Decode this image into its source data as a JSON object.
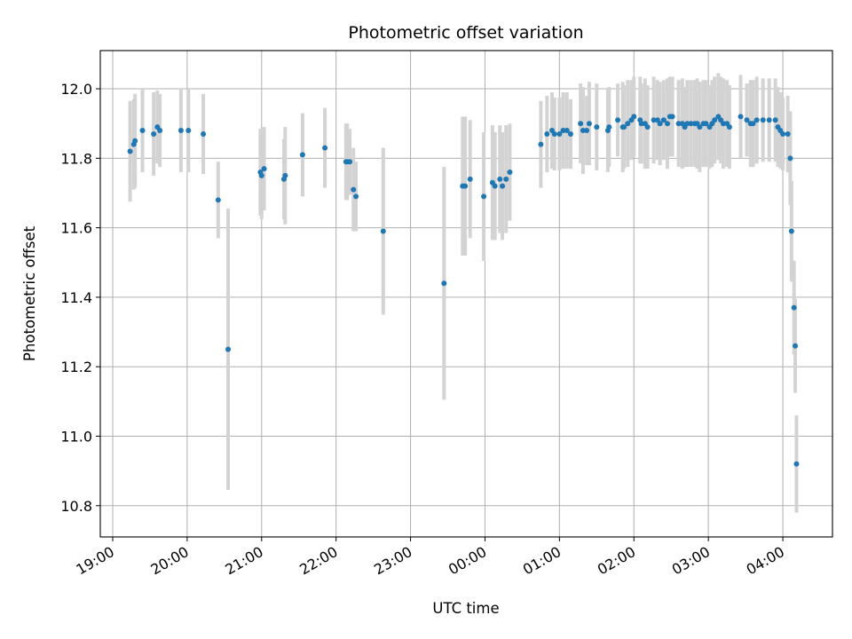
{
  "chart_data": {
    "type": "scatter",
    "title": "Photometric offset variation",
    "xlabel": "UTC time",
    "ylabel": "Photometric offset",
    "x_unit": "hours",
    "x_ticks": [
      "19:00",
      "20:00",
      "21:00",
      "22:00",
      "23:00",
      "00:00",
      "01:00",
      "02:00",
      "03:00",
      "04:00"
    ],
    "y_ticks": [
      "10.8",
      "11.0",
      "11.2",
      "11.4",
      "11.6",
      "11.8",
      "12.0"
    ],
    "xlim": [
      "18:50",
      "04:40"
    ],
    "ylim": [
      10.71,
      12.11
    ],
    "grid": true,
    "legend": false,
    "colors": {
      "point": "#1f77b4",
      "errorbar": "#d3d3d3",
      "grid": "#b0b0b0"
    },
    "series": [
      {
        "x": [
          "19:14",
          "19:17",
          "19:18",
          "19:24",
          "19:33",
          "19:36",
          "19:38",
          "19:55",
          "20:01",
          "20:13",
          "20:25",
          "20:33",
          "20:59",
          "21:00",
          "21:02",
          "21:18",
          "21:19",
          "21:33",
          "21:51",
          "22:08",
          "22:09",
          "22:11",
          "22:14",
          "22:16",
          "22:38",
          "23:27",
          "23:42",
          "23:44",
          "23:48",
          "23:59",
          "24:06",
          "24:08",
          "24:12",
          "24:14",
          "24:17",
          "24:20",
          "24:45",
          "24:50",
          "24:54",
          "24:56",
          "25:00",
          "25:03",
          "25:06",
          "25:09",
          "25:17",
          "25:19",
          "25:22",
          "25:24",
          "25:30",
          "25:39",
          "25:40",
          "25:47",
          "25:51",
          "25:52",
          "25:55",
          "25:58",
          "26:00",
          "26:05",
          "26:06",
          "26:09",
          "26:11",
          "26:16",
          "26:19",
          "26:21",
          "26:24",
          "26:27",
          "26:29",
          "26:31",
          "26:36",
          "26:39",
          "26:41",
          "26:43",
          "26:46",
          "26:49",
          "26:51",
          "26:53",
          "26:56",
          "26:58",
          "27:01",
          "27:03",
          "27:05",
          "27:08",
          "27:10",
          "27:12",
          "27:15",
          "27:17",
          "27:26",
          "27:31",
          "27:34",
          "27:36",
          "27:39",
          "27:44",
          "27:49",
          "27:54",
          "27:56",
          "27:58",
          "28:00",
          "28:04",
          "28:06",
          "28:07",
          "28:09",
          "28:10",
          "28:11"
        ],
        "y": [
          11.82,
          11.84,
          11.85,
          11.88,
          11.87,
          11.89,
          11.88,
          11.88,
          11.88,
          11.87,
          11.68,
          11.25,
          11.76,
          11.75,
          11.77,
          11.74,
          11.75,
          11.81,
          11.83,
          11.79,
          11.79,
          11.79,
          11.71,
          11.69,
          11.59,
          11.44,
          11.72,
          11.72,
          11.74,
          11.69,
          11.73,
          11.72,
          11.74,
          11.72,
          11.74,
          11.76,
          11.84,
          11.87,
          11.88,
          11.87,
          11.87,
          11.88,
          11.88,
          11.87,
          11.9,
          11.88,
          11.88,
          11.9,
          11.89,
          11.88,
          11.89,
          11.91,
          11.89,
          11.89,
          11.9,
          11.91,
          11.92,
          11.91,
          11.9,
          11.9,
          11.89,
          11.91,
          11.91,
          11.9,
          11.91,
          11.9,
          11.92,
          11.92,
          11.9,
          11.9,
          11.89,
          11.9,
          11.9,
          11.9,
          11.9,
          11.89,
          11.9,
          11.9,
          11.89,
          11.9,
          11.91,
          11.92,
          11.91,
          11.9,
          11.9,
          11.89,
          11.92,
          11.91,
          11.9,
          11.9,
          11.91,
          11.91,
          11.91,
          11.91,
          11.89,
          11.88,
          11.87,
          11.87,
          11.8,
          11.59,
          11.37,
          11.26,
          10.92
        ],
        "yerr": [
          0.145,
          0.13,
          0.135,
          0.12,
          0.12,
          0.105,
          0.105,
          0.12,
          0.12,
          0.115,
          0.11,
          0.405,
          0.125,
          0.125,
          0.12,
          0.115,
          0.14,
          0.12,
          0.115,
          0.11,
          0.11,
          0.095,
          0.12,
          0.1,
          0.24,
          0.335,
          0.2,
          0.2,
          0.17,
          0.185,
          0.165,
          0.155,
          0.155,
          0.155,
          0.155,
          0.14,
          0.125,
          0.11,
          0.11,
          0.105,
          0.105,
          0.11,
          0.11,
          0.1,
          0.115,
          0.125,
          0.1,
          0.12,
          0.125,
          0.12,
          0.115,
          0.105,
          0.13,
          0.12,
          0.125,
          0.115,
          0.115,
          0.125,
          0.115,
          0.13,
          0.12,
          0.125,
          0.115,
          0.12,
          0.115,
          0.13,
          0.115,
          0.115,
          0.125,
          0.13,
          0.115,
          0.125,
          0.125,
          0.125,
          0.13,
          0.13,
          0.125,
          0.125,
          0.12,
          0.125,
          0.125,
          0.125,
          0.125,
          0.13,
          0.125,
          0.12,
          0.12,
          0.105,
          0.125,
          0.125,
          0.125,
          0.12,
          0.12,
          0.12,
          0.115,
          0.11,
          0.105,
          0.11,
          0.135,
          0.145,
          0.135,
          0.135,
          0.14
        ]
      }
    ]
  }
}
